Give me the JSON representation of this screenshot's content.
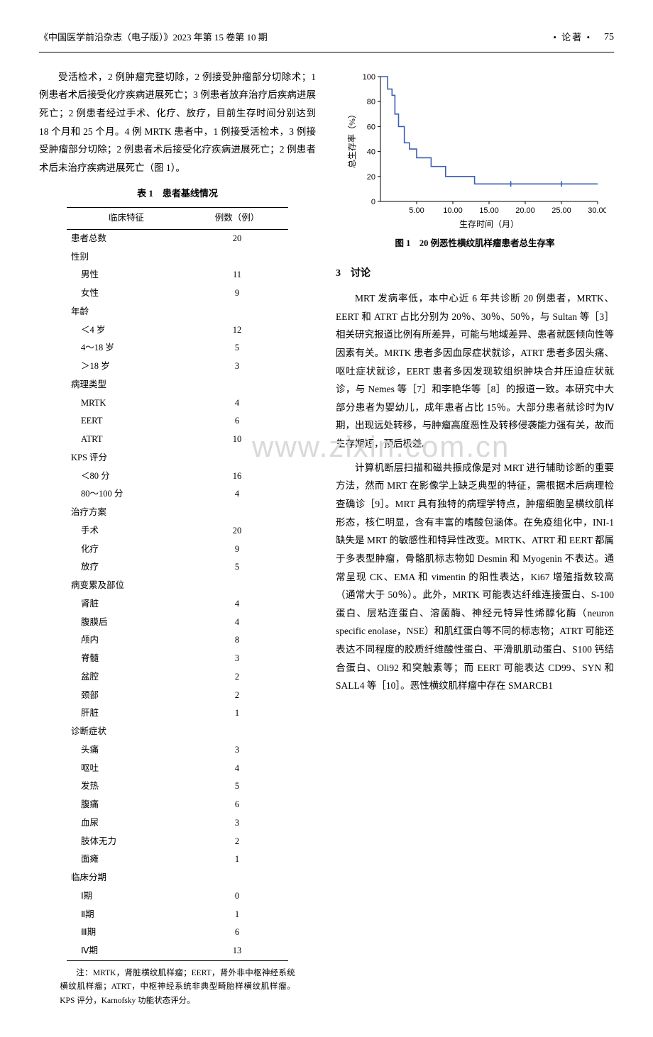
{
  "header": {
    "journal": "《中国医学前沿杂志（电子版）》2023 年第 15 卷第 10 期",
    "section": "论著",
    "page": "75"
  },
  "watermark": "www.zixin.com.cn",
  "para_left": "受活检术，2 例肿瘤完整切除，2 例接受肿瘤部分切除术；1 例患者术后接受化疗疾病进展死亡；3 例患者放弃治疗后疾病进展死亡；2 例患者经过手术、化疗、放疗，目前生存时间分别达到 18 个月和 25 个月。4 例 MRTK 患者中，1 例接受活检术，3 例接受肿瘤部分切除；2 例患者术后接受化疗疾病进展死亡；2 例患者术后未治疗疾病进展死亡（图 1）。",
  "table1": {
    "title": "表 1　患者基线情况",
    "columns": [
      "临床特征",
      "例数（例）"
    ],
    "rows": [
      {
        "label": "患者总数",
        "indent": 0,
        "value": "20"
      },
      {
        "label": "性别",
        "indent": 0,
        "value": ""
      },
      {
        "label": "男性",
        "indent": 1,
        "value": "11"
      },
      {
        "label": "女性",
        "indent": 1,
        "value": "9"
      },
      {
        "label": "年龄",
        "indent": 0,
        "value": ""
      },
      {
        "label": "＜4 岁",
        "indent": 1,
        "value": "12"
      },
      {
        "label": "4～18 岁",
        "indent": 1,
        "value": "5"
      },
      {
        "label": "＞18 岁",
        "indent": 1,
        "value": "3"
      },
      {
        "label": "病理类型",
        "indent": 0,
        "value": ""
      },
      {
        "label": "MRTK",
        "indent": 1,
        "value": "4"
      },
      {
        "label": "EERT",
        "indent": 1,
        "value": "6"
      },
      {
        "label": "ATRT",
        "indent": 1,
        "value": "10"
      },
      {
        "label": "KPS 评分",
        "indent": 0,
        "value": ""
      },
      {
        "label": "＜80 分",
        "indent": 1,
        "value": "16"
      },
      {
        "label": "80～100 分",
        "indent": 1,
        "value": "4"
      },
      {
        "label": "治疗方案",
        "indent": 0,
        "value": ""
      },
      {
        "label": "手术",
        "indent": 1,
        "value": "20"
      },
      {
        "label": "化疗",
        "indent": 1,
        "value": "9"
      },
      {
        "label": "放疗",
        "indent": 1,
        "value": "5"
      },
      {
        "label": "病变累及部位",
        "indent": 0,
        "value": ""
      },
      {
        "label": "肾脏",
        "indent": 1,
        "value": "4"
      },
      {
        "label": "腹膜后",
        "indent": 1,
        "value": "4"
      },
      {
        "label": "颅内",
        "indent": 1,
        "value": "8"
      },
      {
        "label": "脊髓",
        "indent": 1,
        "value": "3"
      },
      {
        "label": "盆腔",
        "indent": 1,
        "value": "2"
      },
      {
        "label": "颈部",
        "indent": 1,
        "value": "2"
      },
      {
        "label": "肝脏",
        "indent": 1,
        "value": "1"
      },
      {
        "label": "诊断症状",
        "indent": 0,
        "value": ""
      },
      {
        "label": "头痛",
        "indent": 1,
        "value": "3"
      },
      {
        "label": "呕吐",
        "indent": 1,
        "value": "4"
      },
      {
        "label": "发热",
        "indent": 1,
        "value": "5"
      },
      {
        "label": "腹痛",
        "indent": 1,
        "value": "6"
      },
      {
        "label": "血尿",
        "indent": 1,
        "value": "3"
      },
      {
        "label": "肢体无力",
        "indent": 1,
        "value": "2"
      },
      {
        "label": "面瘫",
        "indent": 1,
        "value": "1"
      },
      {
        "label": "临床分期",
        "indent": 0,
        "value": ""
      },
      {
        "label": "Ⅰ期",
        "indent": 1,
        "value": "0"
      },
      {
        "label": "Ⅱ期",
        "indent": 1,
        "value": "1"
      },
      {
        "label": "Ⅲ期",
        "indent": 1,
        "value": "6"
      },
      {
        "label": "Ⅳ期",
        "indent": 1,
        "value": "13"
      }
    ],
    "note": "注：MRTK，肾脏横纹肌样瘤；EERT，肾外非中枢神经系统横纹肌样瘤；ATRT，中枢神经系统非典型畸胎样横纹肌样瘤。KPS 评分，Karnofsky 功能状态评分。"
  },
  "figure1": {
    "title": "图 1　20 例恶性横纹肌样瘤患者总生存率",
    "ylabel": "总生存率（%）",
    "xlabel": "生存时间（月）",
    "type": "survival-step",
    "xlim": [
      0,
      30
    ],
    "ylim": [
      0,
      100
    ],
    "xticks": [
      5.0,
      10.0,
      15.0,
      20.0,
      25.0,
      30.0
    ],
    "yticks": [
      0,
      20,
      40,
      60,
      80,
      100
    ],
    "line_color": "#3a5fb5",
    "line_width": 1.6,
    "axis_color": "#000000",
    "background_color": "#ffffff",
    "points": [
      [
        0,
        100
      ],
      [
        1,
        100
      ],
      [
        1,
        90
      ],
      [
        1.6,
        90
      ],
      [
        1.6,
        85
      ],
      [
        2,
        85
      ],
      [
        2,
        70
      ],
      [
        2.5,
        70
      ],
      [
        2.5,
        60
      ],
      [
        3.3,
        60
      ],
      [
        3.3,
        47
      ],
      [
        4,
        47
      ],
      [
        4,
        42
      ],
      [
        5,
        42
      ],
      [
        5,
        35
      ],
      [
        7,
        35
      ],
      [
        7,
        28
      ],
      [
        9,
        28
      ],
      [
        9,
        20
      ],
      [
        13,
        20
      ],
      [
        13,
        14
      ],
      [
        30,
        14
      ]
    ],
    "censor_marks": [
      [
        18,
        14
      ],
      [
        25,
        14
      ]
    ]
  },
  "section3": {
    "heading": "3　讨论",
    "p1": "MRT 发病率低，本中心近 6 年共诊断 20 例患者，MRTK、EERT 和 ATRT 占比分别为 20％、30％、50％，与 Sultan 等［3］相关研究报道比例有所差异，可能与地域差异、患者就医倾向性等因素有关。MRTK 患者多因血尿症状就诊，ATRT 患者多因头痛、呕吐症状就诊，EERT 患者多因发现软组织肿块合并压迫症状就诊，与 Nemes 等［7］和李艳华等［8］的报道一致。本研究中大部分患者为婴幼儿，成年患者占比 15％。大部分患者就诊时为Ⅳ期，出现远处转移，与肿瘤高度恶性及转移侵袭能力强有关，故而生存期短，预后极差。",
    "p2": "计算机断层扫描和磁共振成像是对 MRT 进行辅助诊断的重要方法，然而 MRT 在影像学上缺乏典型的特征，需根据术后病理检查确诊［9］。MRT 具有独特的病理学特点，肿瘤细胞呈横纹肌样形态，核仁明显，含有丰富的嗜酸包涵体。在免疫组化中，INI-1 缺失是 MRT 的敏感性和特异性改变。MRTK、ATRT 和 EERT 都属于多表型肿瘤，骨骼肌标志物如 Desmin 和 Myogenin 不表达。通常呈现 CK、EMA 和 vimentin 的阳性表达，Ki67 增殖指数较高（通常大于 50％）。此外，MRTK 可能表达纤维连接蛋白、S-100 蛋白、层粘连蛋白、溶菌酶、神经元特异性烯醇化酶（neuron specific enolase，NSE）和肌红蛋白等不同的标志物；ATRT 可能还表达不同程度的胶质纤维酸性蛋白、平滑肌肌动蛋白、S100 钙结合蛋白、Oli92 和突触素等；而 EERT 可能表达 CD99、SYN 和 SALL4 等［10］。恶性横纹肌样瘤中存在 SMARCB1"
  }
}
